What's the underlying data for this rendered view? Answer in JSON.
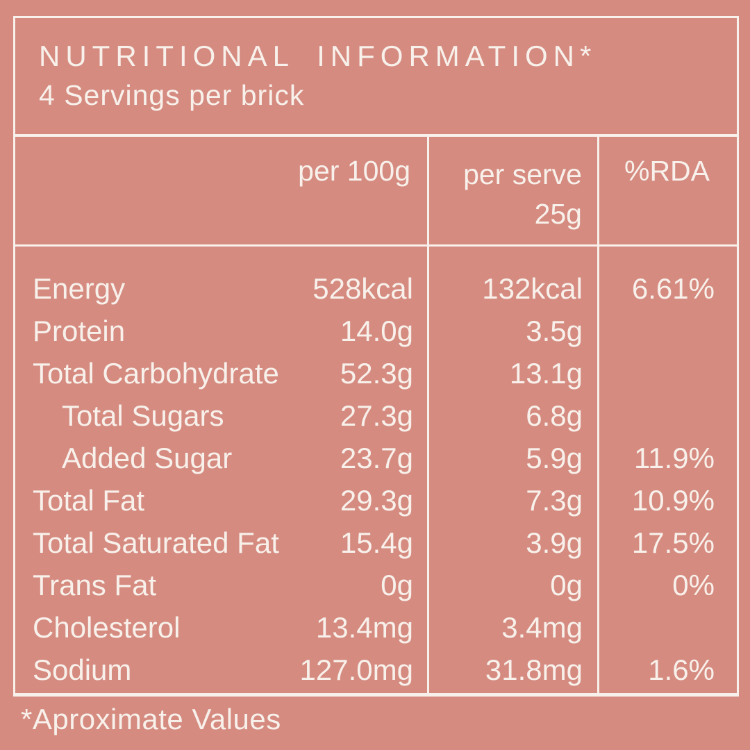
{
  "colors": {
    "background": "#d58b80",
    "foreground": "#f8f1eb"
  },
  "header": {
    "title": "NUTRITIONAL INFORMATION*",
    "subtitle": "4 Servings per brick"
  },
  "columns": {
    "per_100g": "per 100g",
    "per_serve_line1": "per serve",
    "per_serve_line2": "25g",
    "rda": "%RDA"
  },
  "rows": [
    {
      "label": "Energy",
      "per_100g": "528kcal",
      "per_serve": "132kcal",
      "rda": "6.61%",
      "indent": false
    },
    {
      "label": "Protein",
      "per_100g": "14.0g",
      "per_serve": "3.5g",
      "rda": "",
      "indent": false
    },
    {
      "label": "Total Carbohydrate",
      "per_100g": "52.3g",
      "per_serve": "13.1g",
      "rda": "",
      "indent": false
    },
    {
      "label": "Total Sugars",
      "per_100g": "27.3g",
      "per_serve": "6.8g",
      "rda": "",
      "indent": true
    },
    {
      "label": "Added Sugar",
      "per_100g": "23.7g",
      "per_serve": "5.9g",
      "rda": "11.9%",
      "indent": true
    },
    {
      "label": "Total Fat",
      "per_100g": "29.3g",
      "per_serve": "7.3g",
      "rda": "10.9%",
      "indent": false
    },
    {
      "label": "Total Saturated Fat",
      "per_100g": "15.4g",
      "per_serve": "3.9g",
      "rda": "17.5%",
      "indent": false
    },
    {
      "label": "Trans Fat",
      "per_100g": "0g",
      "per_serve": "0g",
      "rda": "0%",
      "indent": false
    },
    {
      "label": "Cholesterol",
      "per_100g": "13.4mg",
      "per_serve": "3.4mg",
      "rda": "",
      "indent": false
    },
    {
      "label": "Sodium",
      "per_100g": "127.0mg",
      "per_serve": "31.8mg",
      "rda": "1.6%",
      "indent": false
    }
  ],
  "footer": {
    "note": "*Aproximate Values"
  }
}
